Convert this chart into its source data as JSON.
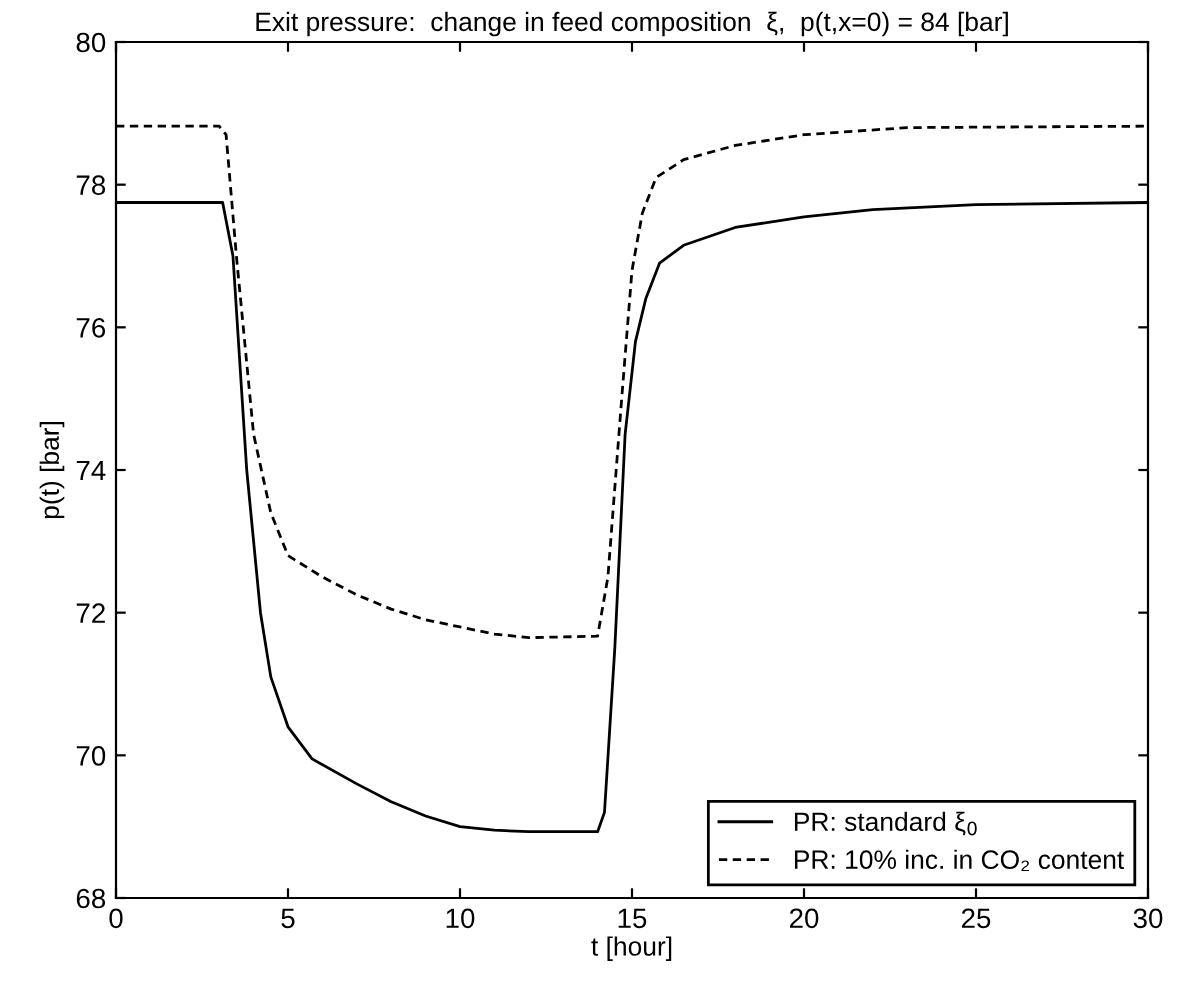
{
  "chart_data": {
    "type": "line",
    "title": "Exit pressure:  change in feed composition  ξ,  p(t,x=0) = 84 [bar]",
    "xlabel": "t [hour]",
    "ylabel": "p(t) [bar]",
    "xlim": [
      0,
      30
    ],
    "xticks": [
      0,
      5,
      10,
      15,
      20,
      25,
      30
    ],
    "ylim": [
      68,
      80
    ],
    "yticks": [
      68,
      70,
      72,
      74,
      76,
      78,
      80
    ],
    "grid": false,
    "legend": "bottom right",
    "marker": "none",
    "series": [
      {
        "name": "PR: standard ξ$_{0}$",
        "color": "#000000",
        "line_style": "solid",
        "x": [
          0,
          3.1,
          3.4,
          3.8,
          4.2,
          4.5,
          5,
          5.7,
          7,
          8,
          9,
          10,
          11,
          12,
          14,
          14.2,
          14.5,
          14.8,
          15.1,
          15.4,
          15.8,
          16.5,
          18,
          20,
          22,
          25,
          30
        ],
        "values": [
          77.75,
          77.75,
          77.0,
          74,
          72,
          71.1,
          70.4,
          69.95,
          69.6,
          69.35,
          69.15,
          69.0,
          68.95,
          68.93,
          68.93,
          69.2,
          71.5,
          74.5,
          75.8,
          76.4,
          76.9,
          77.15,
          77.4,
          77.55,
          77.65,
          77.72,
          77.75
        ]
      },
      {
        "name": "PR: 10% inc. in CO₂ content",
        "color": "#000000",
        "line_style": "dashed",
        "x": [
          0,
          3.0,
          3.2,
          3.5,
          4.0,
          4.5,
          5,
          6,
          7,
          8,
          9,
          10,
          11,
          12,
          14,
          14.3,
          14.7,
          15.0,
          15.3,
          15.7,
          16.5,
          18,
          20,
          23,
          30
        ],
        "values": [
          78.82,
          78.82,
          78.7,
          77.0,
          74.5,
          73.4,
          72.8,
          72.5,
          72.25,
          72.05,
          71.9,
          71.8,
          71.7,
          71.65,
          71.67,
          72.5,
          75,
          76.8,
          77.6,
          78.1,
          78.35,
          78.55,
          78.7,
          78.8,
          78.82
        ]
      }
    ]
  }
}
